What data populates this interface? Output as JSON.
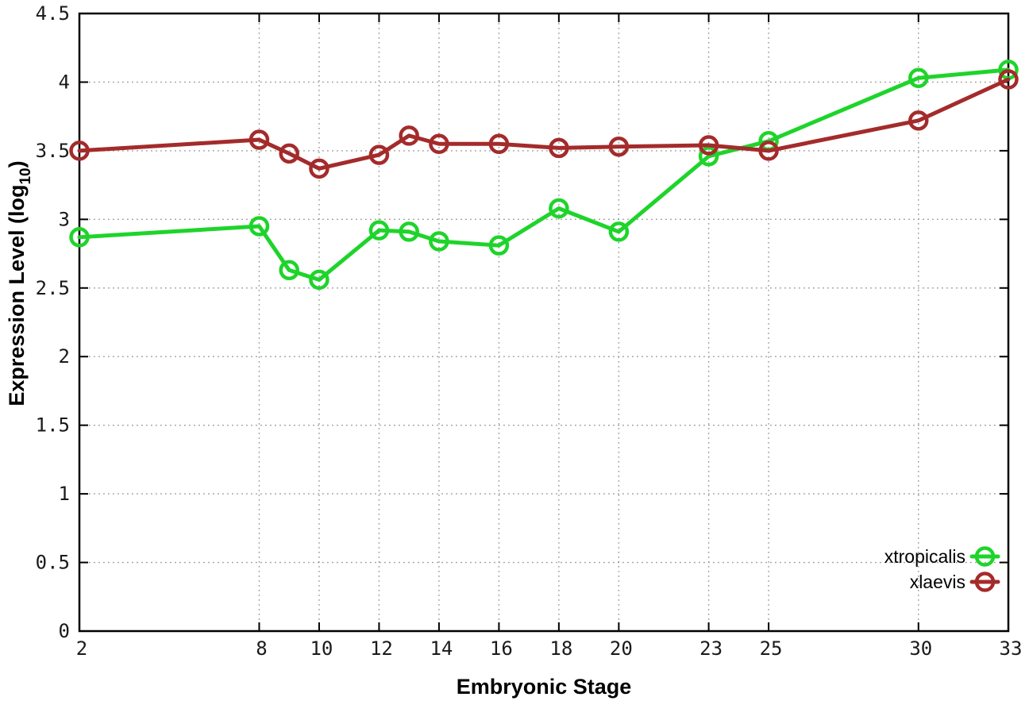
{
  "chart_data": {
    "type": "line",
    "title": "",
    "xlabel": "Embryonic Stage",
    "ylabel": "Expression Level (log10)",
    "ylabel_parts": {
      "main": "Expression Level (log",
      "sub": "10",
      "end": ")"
    },
    "x": [
      2,
      8,
      9,
      10,
      12,
      13,
      14,
      16,
      18,
      20,
      23,
      25,
      30,
      33
    ],
    "series": [
      {
        "name": "xtropicalis",
        "color": "#1ed42a",
        "values": [
          2.87,
          2.95,
          2.63,
          2.56,
          2.92,
          2.91,
          2.84,
          2.81,
          3.08,
          2.91,
          3.46,
          3.57,
          4.03,
          4.09
        ]
      },
      {
        "name": "xlaevis",
        "color": "#a42b2b",
        "values": [
          3.5,
          3.58,
          3.48,
          3.37,
          3.47,
          3.61,
          3.55,
          3.55,
          3.52,
          3.53,
          3.54,
          3.5,
          3.72,
          4.02
        ]
      }
    ],
    "xticks": [
      "2",
      "8",
      "10",
      "12",
      "14",
      "16",
      "18",
      "20",
      "23",
      "25",
      "30",
      "33"
    ],
    "xtick_values": [
      2,
      8,
      10,
      12,
      14,
      16,
      18,
      20,
      23,
      25,
      30,
      33
    ],
    "yticks": [
      "0",
      "0.5",
      "1",
      "1.5",
      "2",
      "2.5",
      "3",
      "3.5",
      "4",
      "4.5"
    ],
    "ytick_values": [
      0,
      0.5,
      1,
      1.5,
      2,
      2.5,
      3,
      3.5,
      4,
      4.5
    ],
    "xlim": [
      2,
      33
    ],
    "ylim": [
      0,
      4.5
    ],
    "grid": true,
    "legend_position": "bottom-right",
    "legend_entries": [
      "xtropicalis",
      "xlaevis"
    ],
    "colors": {
      "background": "#ffffff",
      "axis": "#000000",
      "grid": "#9a9a9a",
      "text": "#1a1a1a"
    }
  }
}
